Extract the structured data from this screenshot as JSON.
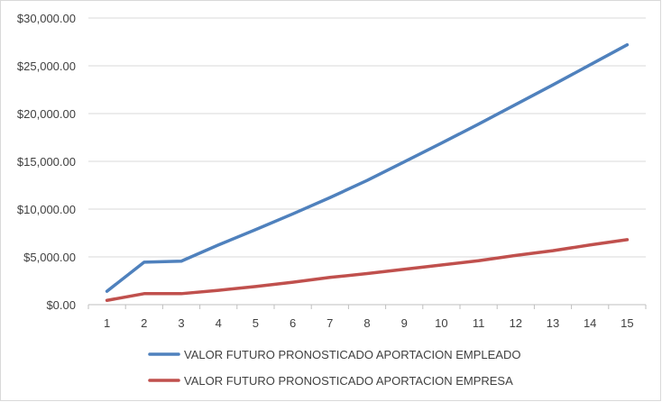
{
  "chart_data": {
    "type": "line",
    "title": "",
    "xlabel": "",
    "ylabel": "",
    "x": [
      1,
      2,
      3,
      4,
      5,
      6,
      7,
      8,
      9,
      10,
      11,
      12,
      13,
      14,
      15
    ],
    "x_tick_labels": [
      "1",
      "2",
      "3",
      "4",
      "5",
      "6",
      "7",
      "8",
      "9",
      "10",
      "11",
      "12",
      "13",
      "14",
      "15"
    ],
    "ylim": [
      0,
      30000
    ],
    "y_ticks": [
      0,
      5000,
      10000,
      15000,
      20000,
      25000,
      30000
    ],
    "y_tick_labels": [
      "$0.00",
      "$5,000.00",
      "$10,000.00",
      "$15,000.00",
      "$20,000.00",
      "$25,000.00",
      "$30,000.00"
    ],
    "grid": "horizontal",
    "legend_position": "bottom",
    "series": [
      {
        "name": "VALOR FUTURO PRONOSTICADO APORTACION EMPLEADO",
        "color": "#4f81bd",
        "values": [
          1400,
          4450,
          4550,
          6250,
          7850,
          9500,
          11200,
          13000,
          14950,
          16900,
          18900,
          20950,
          23000,
          25100,
          27200
        ]
      },
      {
        "name": "VALOR FUTURO PRONOSTICADO APORTACION EMPRESA",
        "color": "#c0504d",
        "values": [
          450,
          1150,
          1150,
          1500,
          1900,
          2350,
          2850,
          3250,
          3700,
          4150,
          4600,
          5150,
          5650,
          6250,
          6800
        ]
      }
    ]
  }
}
